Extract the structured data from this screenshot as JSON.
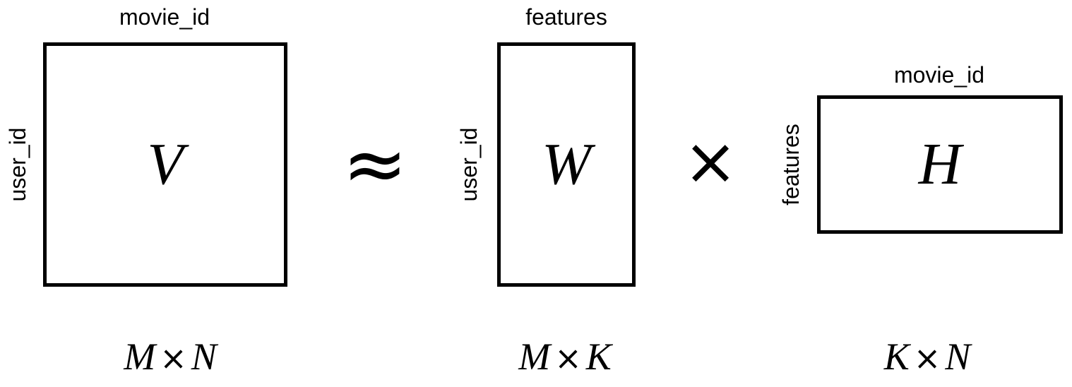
{
  "matrices": {
    "v": {
      "symbol": "V",
      "top_label": "movie_id",
      "side_label": "user_id",
      "dims": {
        "rows": "M",
        "times": "×",
        "cols": "N"
      }
    },
    "w": {
      "symbol": "W",
      "top_label": "features",
      "side_label": "user_id",
      "dims": {
        "rows": "M",
        "times": "×",
        "cols": "K"
      }
    },
    "h": {
      "symbol": "H",
      "top_label": "movie_id",
      "side_label": "features",
      "dims": {
        "rows": "K",
        "times": "×",
        "cols": "N"
      }
    }
  },
  "operators": {
    "approx": "≈",
    "times": "×"
  }
}
